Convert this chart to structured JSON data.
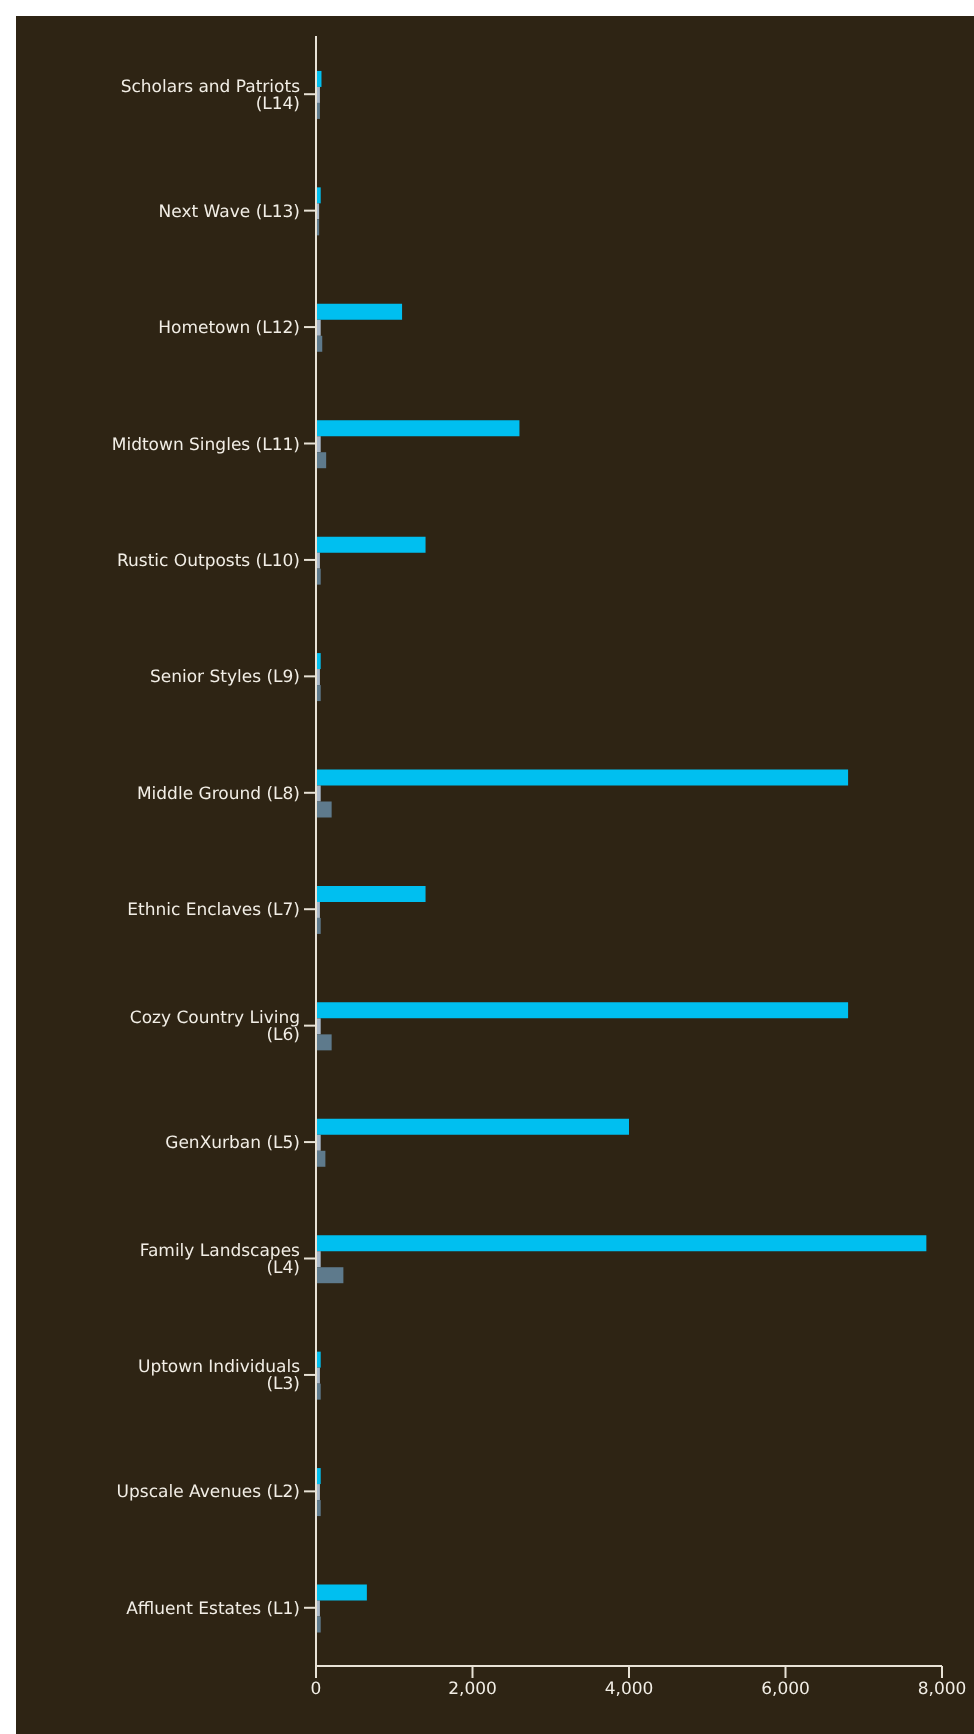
{
  "chart_data": {
    "type": "bar",
    "orientation": "horizontal",
    "categories": [
      "Scholars and Patriots (L14)",
      "Next Wave (L13)",
      "Hometown (L12)",
      "Midtown Singles (L11)",
      "Rustic Outposts (L10)",
      "Senior Styles (L9)",
      "Middle Ground (L8)",
      "Ethnic Enclaves (L7)",
      "Cozy Country Living (L6)",
      "GenXurban (L5)",
      "Family Landscapes (L4)",
      "Uptown Individuals (L3)",
      "Upscale Avenues (L2)",
      "Affluent Estates (L1)"
    ],
    "series": [
      {
        "color": "#00bff0",
        "values": [
          70,
          60,
          1100,
          2600,
          1400,
          60,
          6800,
          1400,
          6800,
          4000,
          7800,
          60,
          60,
          650
        ]
      },
      {
        "color": "#a9b8c8",
        "values": [
          50,
          40,
          60,
          60,
          50,
          50,
          60,
          50,
          60,
          60,
          60,
          50,
          50,
          50
        ]
      },
      {
        "color": "#5e7a8c",
        "values": [
          50,
          40,
          80,
          130,
          60,
          60,
          200,
          60,
          200,
          120,
          350,
          60,
          60,
          60
        ]
      }
    ],
    "xlim": [
      0,
      8000
    ],
    "xticks": [
      0,
      {
        "value": 2000,
        "label": "2,000"
      },
      {
        "value": 4000,
        "label": "4,000"
      },
      {
        "value": 6000,
        "label": "6,000"
      },
      {
        "value": 8000,
        "label": "8,000"
      }
    ],
    "grid": false
  }
}
